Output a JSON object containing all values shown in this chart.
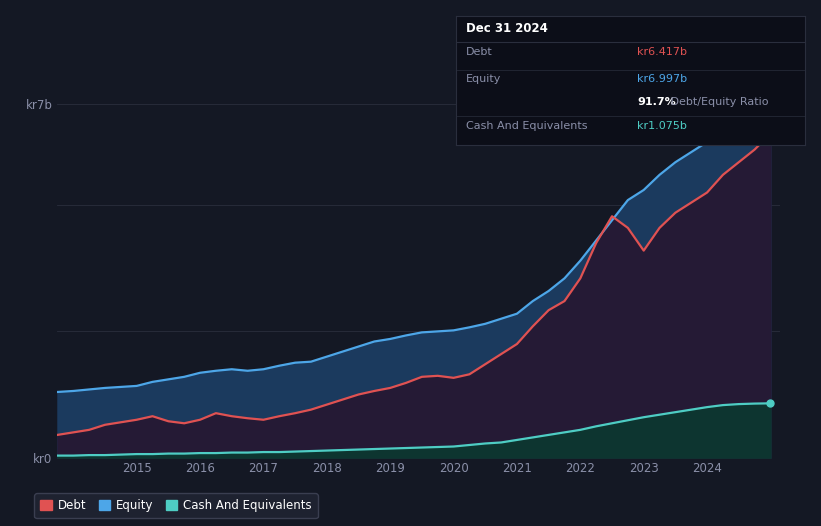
{
  "bg_color": "#141824",
  "plot_bg_color": "#141824",
  "grid_color": "#2a2e3d",
  "tooltip": {
    "title": "Dec 31 2024",
    "debt_label": "Debt",
    "debt_value": "kr6.417b",
    "equity_label": "Equity",
    "equity_value": "kr6.997b",
    "ratio": "91.7%",
    "ratio_label": "Debt/Equity Ratio",
    "cash_label": "Cash And Equivalents",
    "cash_value": "kr1.075b"
  },
  "ylabel_top": "kr7b",
  "ylabel_bottom": "kr0",
  "x_ticks": [
    2015,
    2016,
    2017,
    2018,
    2019,
    2020,
    2021,
    2022,
    2023,
    2024
  ],
  "debt_color": "#e05252",
  "equity_color": "#4da6e8",
  "cash_color": "#4ecdc4",
  "legend": [
    {
      "label": "Debt",
      "color": "#e05252"
    },
    {
      "label": "Equity",
      "color": "#4da6e8"
    },
    {
      "label": "Cash And Equivalents",
      "color": "#4ecdc4"
    }
  ],
  "x_data": [
    2013.75,
    2014.0,
    2014.25,
    2014.5,
    2014.75,
    2015.0,
    2015.25,
    2015.5,
    2015.75,
    2016.0,
    2016.25,
    2016.5,
    2016.75,
    2017.0,
    2017.25,
    2017.5,
    2017.75,
    2018.0,
    2018.25,
    2018.5,
    2018.75,
    2019.0,
    2019.25,
    2019.5,
    2019.75,
    2020.0,
    2020.25,
    2020.5,
    2020.75,
    2021.0,
    2021.25,
    2021.5,
    2021.75,
    2022.0,
    2022.25,
    2022.5,
    2022.75,
    2023.0,
    2023.25,
    2023.5,
    2023.75,
    2024.0,
    2024.25,
    2024.5,
    2024.75,
    2025.0
  ],
  "equity_data": [
    1.3,
    1.32,
    1.35,
    1.38,
    1.4,
    1.42,
    1.5,
    1.55,
    1.6,
    1.68,
    1.72,
    1.75,
    1.72,
    1.75,
    1.82,
    1.88,
    1.9,
    2.0,
    2.1,
    2.2,
    2.3,
    2.35,
    2.42,
    2.48,
    2.5,
    2.52,
    2.58,
    2.65,
    2.75,
    2.85,
    3.1,
    3.3,
    3.55,
    3.9,
    4.3,
    4.7,
    5.1,
    5.3,
    5.6,
    5.85,
    6.05,
    6.25,
    6.55,
    6.75,
    6.95,
    6.997
  ],
  "debt_data": [
    0.45,
    0.5,
    0.55,
    0.65,
    0.7,
    0.75,
    0.82,
    0.72,
    0.68,
    0.75,
    0.88,
    0.82,
    0.78,
    0.75,
    0.82,
    0.88,
    0.95,
    1.05,
    1.15,
    1.25,
    1.32,
    1.38,
    1.48,
    1.6,
    1.62,
    1.58,
    1.65,
    1.85,
    2.05,
    2.25,
    2.6,
    2.92,
    3.1,
    3.55,
    4.25,
    4.78,
    4.55,
    4.1,
    4.55,
    4.85,
    5.05,
    5.25,
    5.6,
    5.85,
    6.1,
    6.417
  ],
  "cash_data": [
    0.04,
    0.04,
    0.05,
    0.05,
    0.06,
    0.07,
    0.07,
    0.08,
    0.08,
    0.09,
    0.09,
    0.1,
    0.1,
    0.11,
    0.11,
    0.12,
    0.13,
    0.14,
    0.15,
    0.16,
    0.17,
    0.18,
    0.19,
    0.2,
    0.21,
    0.22,
    0.25,
    0.28,
    0.3,
    0.35,
    0.4,
    0.45,
    0.5,
    0.55,
    0.62,
    0.68,
    0.74,
    0.8,
    0.85,
    0.9,
    0.95,
    1.0,
    1.04,
    1.06,
    1.07,
    1.075
  ],
  "ylim": [
    0,
    7.5
  ],
  "xlim": [
    2013.75,
    2025.15
  ]
}
